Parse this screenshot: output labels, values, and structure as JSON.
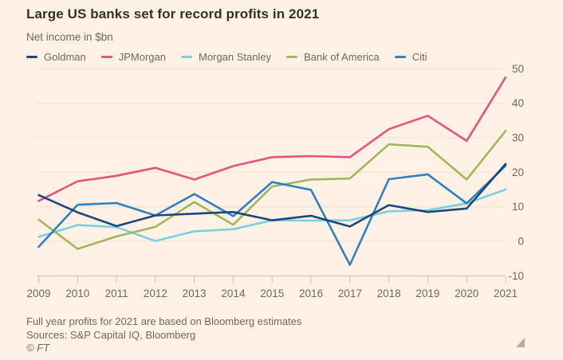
{
  "title": "Large US banks set for record profits in 2021",
  "subtitle": "Net income in $bn",
  "notes": {
    "footnote": "Full year profits for 2021 are based on Bloomberg estimates",
    "sources": "Sources: S&P Capital IQ, Bloomberg",
    "copyright": "© FT"
  },
  "colors": {
    "background": "#fff1e5",
    "title_text": "#33302e",
    "muted_text": "#6f6860",
    "gridline": "#f2e0cf",
    "axis_line": "#cdbeb0",
    "resize_handle": "#b9ac9f"
  },
  "chart_data": {
    "type": "line",
    "title": "Large US banks set for record profits in 2021",
    "subtitle": "Net income in $bn",
    "xlabel": "",
    "ylabel": "Net income in $bn",
    "x": [
      2009,
      2010,
      2011,
      2012,
      2013,
      2014,
      2015,
      2016,
      2017,
      2018,
      2019,
      2020,
      2021
    ],
    "series": [
      {
        "name": "Goldman",
        "color": "#1b4878",
        "values": [
          13.4,
          8.4,
          4.4,
          7.5,
          8.0,
          8.5,
          6.1,
          7.4,
          4.3,
          10.5,
          8.5,
          9.5,
          22.4
        ]
      },
      {
        "name": "JPMorgan",
        "color": "#e5547e",
        "values": [
          11.7,
          17.4,
          19.0,
          21.3,
          17.9,
          21.8,
          24.4,
          24.7,
          24.4,
          32.5,
          36.4,
          29.1,
          47.5
        ]
      },
      {
        "name": "Morgan Stanley",
        "color": "#7ad1dd",
        "values": [
          1.3,
          4.7,
          4.1,
          0.1,
          2.9,
          3.5,
          6.1,
          6.0,
          6.1,
          8.7,
          9.0,
          11.0,
          15.0
        ]
      },
      {
        "name": "Bank of America",
        "color": "#a2b65a",
        "values": [
          6.3,
          -2.2,
          1.4,
          4.2,
          11.4,
          4.8,
          15.9,
          17.9,
          18.2,
          28.1,
          27.4,
          17.9,
          32.0
        ]
      },
      {
        "name": "Citi",
        "color": "#2e80c1",
        "values": [
          -1.6,
          10.6,
          11.1,
          7.5,
          13.7,
          7.3,
          17.2,
          14.9,
          -6.8,
          18.0,
          19.4,
          11.0,
          21.9
        ]
      }
    ],
    "ylim": [
      -10,
      50
    ],
    "yticks": [
      -10,
      0,
      10,
      20,
      30,
      40,
      50
    ],
    "grid": "horizontal",
    "legend_position": "top",
    "draw_order": [
      "Morgan Stanley",
      "Bank of America",
      "JPMorgan",
      "Citi",
      "Goldman"
    ]
  }
}
